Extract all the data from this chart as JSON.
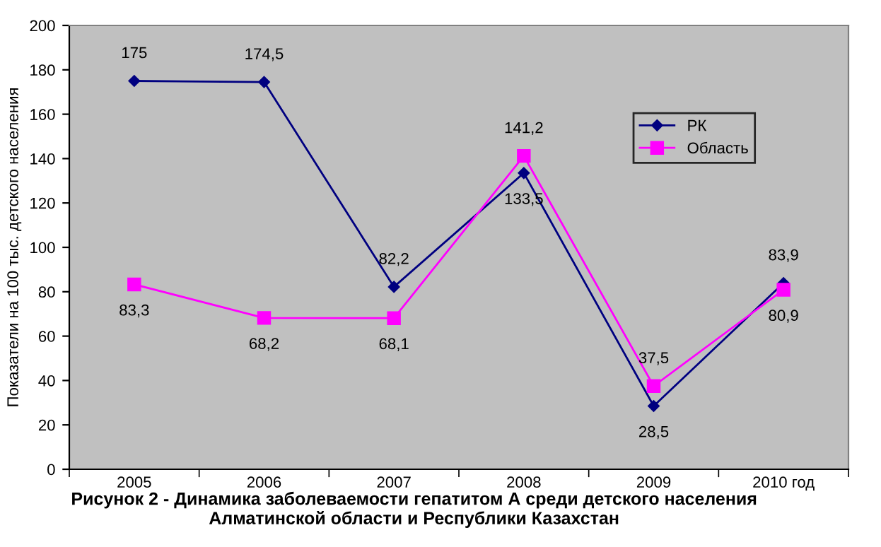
{
  "chart_data": {
    "type": "line",
    "title": "Рисунок 2 - Динамика заболеваемости гепатитом А среди детского населения\nАлматинской области и Республики Казахстан",
    "ylabel": "Показатели на 100 тыс. детского населения",
    "categories": [
      "2005",
      "2006",
      "2007",
      "2008",
      "2009",
      "2010 год"
    ],
    "series": [
      {
        "name": "РК",
        "color": "#000080",
        "marker": "diamond",
        "values": [
          175,
          174.5,
          82.2,
          133.5,
          28.5,
          83.9
        ],
        "value_labels": [
          "175",
          "174,5",
          "82,2",
          "133,5",
          "28,5",
          "83,9"
        ]
      },
      {
        "name": "Область",
        "color": "#ff00ff",
        "marker": "square",
        "values": [
          83.3,
          68.2,
          68.1,
          141.2,
          37.5,
          80.9
        ],
        "value_labels": [
          "83,3",
          "68,2",
          "68,1",
          "141,2",
          "37,5",
          "80,9"
        ]
      }
    ],
    "ylim": [
      0,
      200
    ],
    "yticks": [
      0,
      20,
      40,
      60,
      80,
      100,
      120,
      140,
      160,
      180,
      200
    ],
    "grid": false,
    "legend": "top right",
    "line_style": "solid"
  }
}
